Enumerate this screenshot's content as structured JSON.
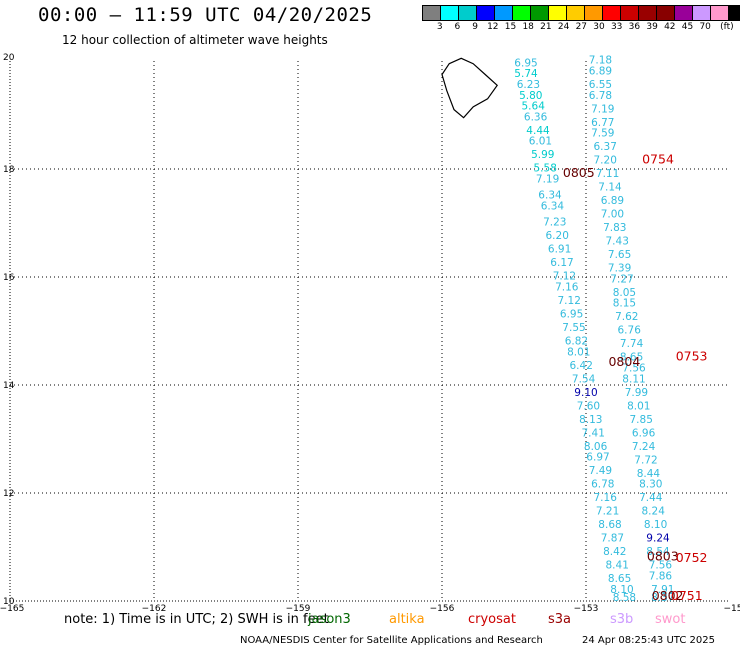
{
  "header": {
    "title": "00:00 – 11:59 UTC 04/20/2025",
    "subtitle": "12 hour collection of altimeter wave heights"
  },
  "colorbar": {
    "colors": [
      "#7f7f7f",
      "#00ffff",
      "#00cccc",
      "#0000ff",
      "#0099ff",
      "#00ff00",
      "#009900",
      "#ffff00",
      "#ffcc00",
      "#ff9900",
      "#ff0000",
      "#cc0000",
      "#990000",
      "#880000",
      "#990099",
      "#cc99ff",
      "#ff99cc",
      "#000000"
    ],
    "ticks": [
      "3",
      "6",
      "9",
      "12",
      "15",
      "18",
      "21",
      "24",
      "27",
      "30",
      "33",
      "36",
      "39",
      "42",
      "45",
      "70",
      "(ft)"
    ]
  },
  "axes": {
    "x_ticks": [
      "−165",
      "−162",
      "−159",
      "−156",
      "−153",
      "−15"
    ],
    "y_ticks": [
      "20",
      "18",
      "16",
      "14",
      "12",
      "10"
    ],
    "x_range": [
      -165,
      -150
    ],
    "y_range": [
      10,
      20
    ]
  },
  "footer": {
    "note": "note: 1) Time is in UTC; 2) SWH is in feet",
    "credit": "NOAA/NESDIS Center for Satellite Applications and Research",
    "generated": "24 Apr 08:25:43 UTC 2025"
  },
  "legend": [
    {
      "label": "jason3",
      "color": "#006600"
    },
    {
      "label": "altika",
      "color": "#ff9900"
    },
    {
      "label": "cryosat",
      "color": "#cc0000"
    },
    {
      "label": "s3a",
      "color": "#990000"
    },
    {
      "label": "s3b",
      "color": "#cc99ff"
    },
    {
      "label": "swot",
      "color": "#ff99cc"
    }
  ],
  "pass_labels": [
    {
      "text": "0805",
      "lon": -153.15,
      "lat": 17.85,
      "color": "#660000"
    },
    {
      "text": "0754",
      "lon": -151.5,
      "lat": 18.1,
      "color": "#cc0000"
    },
    {
      "text": "0804",
      "lon": -152.2,
      "lat": 14.35,
      "color": "#660000"
    },
    {
      "text": "0753",
      "lon": -150.8,
      "lat": 14.45,
      "color": "#cc0000"
    },
    {
      "text": "0803",
      "lon": -151.4,
      "lat": 10.75,
      "color": "#660000"
    },
    {
      "text": "0752",
      "lon": -150.8,
      "lat": 10.72,
      "color": "#cc0000"
    },
    {
      "text": "0802",
      "lon": -151.3,
      "lat": 10.02,
      "color": "#660000"
    },
    {
      "text": "0751",
      "lon": -150.9,
      "lat": 10.02,
      "color": "#cc0000"
    }
  ],
  "tracks": [
    {
      "name": "track-west",
      "points": [
        {
          "lon": -154.25,
          "lat": 19.9,
          "v": "6.95",
          "c": "#33bbdd"
        },
        {
          "lon": -154.25,
          "lat": 19.7,
          "v": "5.74",
          "c": "#00cccc"
        },
        {
          "lon": -154.2,
          "lat": 19.5,
          "v": "6.23",
          "c": "#33bbdd"
        },
        {
          "lon": -154.15,
          "lat": 19.3,
          "v": "5.80",
          "c": "#00cccc"
        },
        {
          "lon": -154.1,
          "lat": 19.1,
          "v": "5.64",
          "c": "#00cccc"
        },
        {
          "lon": -154.05,
          "lat": 18.9,
          "v": "6.36",
          "c": "#33bbdd"
        },
        {
          "lon": -154.0,
          "lat": 18.65,
          "v": "4.44",
          "c": "#00cccc"
        },
        {
          "lon": -153.95,
          "lat": 18.45,
          "v": "6.01",
          "c": "#33bbdd"
        },
        {
          "lon": -153.9,
          "lat": 18.2,
          "v": "5.99",
          "c": "#00cccc"
        },
        {
          "lon": -153.85,
          "lat": 17.95,
          "v": "5.58",
          "c": "#00cccc"
        },
        {
          "lon": -153.8,
          "lat": 17.75,
          "v": "7.19",
          "c": "#33bbdd"
        },
        {
          "lon": -153.75,
          "lat": 17.45,
          "v": "6.34",
          "c": "#33bbdd"
        },
        {
          "lon": -153.7,
          "lat": 17.25,
          "v": "6.34",
          "c": "#33bbdd"
        },
        {
          "lon": -153.65,
          "lat": 16.95,
          "v": "7.23",
          "c": "#33bbdd"
        },
        {
          "lon": -153.6,
          "lat": 16.7,
          "v": "6.20",
          "c": "#33bbdd"
        },
        {
          "lon": -153.55,
          "lat": 16.45,
          "v": "6.91",
          "c": "#33bbdd"
        },
        {
          "lon": -153.5,
          "lat": 16.2,
          "v": "6.17",
          "c": "#33bbdd"
        },
        {
          "lon": -153.45,
          "lat": 15.95,
          "v": "7.12",
          "c": "#33bbdd"
        },
        {
          "lon": -153.4,
          "lat": 15.75,
          "v": "7.16",
          "c": "#33bbdd"
        },
        {
          "lon": -153.35,
          "lat": 15.5,
          "v": "7.12",
          "c": "#33bbdd"
        },
        {
          "lon": -153.3,
          "lat": 15.25,
          "v": "6.95",
          "c": "#33bbdd"
        },
        {
          "lon": -153.25,
          "lat": 15.0,
          "v": "7.55",
          "c": "#33bbdd"
        },
        {
          "lon": -153.2,
          "lat": 14.75,
          "v": "6.82",
          "c": "#33bbdd"
        },
        {
          "lon": -153.15,
          "lat": 14.55,
          "v": "8.01",
          "c": "#33bbdd"
        },
        {
          "lon": -153.1,
          "lat": 14.3,
          "v": "6.42",
          "c": "#33bbdd"
        },
        {
          "lon": -153.05,
          "lat": 14.05,
          "v": "7.54",
          "c": "#33bbdd"
        },
        {
          "lon": -153.0,
          "lat": 13.8,
          "v": "9.10",
          "c": "#0000aa"
        },
        {
          "lon": -152.95,
          "lat": 13.55,
          "v": "7.60",
          "c": "#33bbdd"
        },
        {
          "lon": -152.9,
          "lat": 13.3,
          "v": "8.13",
          "c": "#33bbdd"
        },
        {
          "lon": -152.85,
          "lat": 13.05,
          "v": "7.41",
          "c": "#33bbdd"
        },
        {
          "lon": -152.8,
          "lat": 12.8,
          "v": "8.06",
          "c": "#33bbdd"
        },
        {
          "lon": -152.75,
          "lat": 12.6,
          "v": "6.97",
          "c": "#33bbdd"
        },
        {
          "lon": -152.7,
          "lat": 12.35,
          "v": "7.49",
          "c": "#33bbdd"
        },
        {
          "lon": -152.65,
          "lat": 12.1,
          "v": "6.78",
          "c": "#33bbdd"
        },
        {
          "lon": -152.6,
          "lat": 11.85,
          "v": "7.16",
          "c": "#33bbdd"
        },
        {
          "lon": -152.55,
          "lat": 11.6,
          "v": "7.21",
          "c": "#33bbdd"
        },
        {
          "lon": -152.5,
          "lat": 11.35,
          "v": "8.68",
          "c": "#33bbdd"
        },
        {
          "lon": -152.45,
          "lat": 11.1,
          "v": "7.87",
          "c": "#33bbdd"
        },
        {
          "lon": -152.4,
          "lat": 10.85,
          "v": "8.42",
          "c": "#33bbdd"
        },
        {
          "lon": -152.35,
          "lat": 10.6,
          "v": "8.41",
          "c": "#33bbdd"
        },
        {
          "lon": -152.3,
          "lat": 10.35,
          "v": "8.65",
          "c": "#33bbdd"
        },
        {
          "lon": -152.25,
          "lat": 10.15,
          "v": "8.10",
          "c": "#33bbdd"
        },
        {
          "lon": -152.2,
          "lat": 10.0,
          "v": "8.58",
          "c": "#33bbdd"
        }
      ]
    },
    {
      "name": "track-east",
      "points": [
        {
          "lon": -152.7,
          "lat": 19.95,
          "v": "7.18",
          "c": "#33bbdd"
        },
        {
          "lon": -152.7,
          "lat": 19.75,
          "v": "6.89",
          "c": "#33bbdd"
        },
        {
          "lon": -152.7,
          "lat": 19.5,
          "v": "6.55",
          "c": "#33bbdd"
        },
        {
          "lon": -152.7,
          "lat": 19.3,
          "v": "6.78",
          "c": "#33bbdd"
        },
        {
          "lon": -152.65,
          "lat": 19.05,
          "v": "7.19",
          "c": "#33bbdd"
        },
        {
          "lon": -152.65,
          "lat": 18.8,
          "v": "6.77",
          "c": "#33bbdd"
        },
        {
          "lon": -152.65,
          "lat": 18.6,
          "v": "7.59",
          "c": "#33bbdd"
        },
        {
          "lon": -152.6,
          "lat": 18.35,
          "v": "6.37",
          "c": "#33bbdd"
        },
        {
          "lon": -152.6,
          "lat": 18.1,
          "v": "7.20",
          "c": "#33bbdd"
        },
        {
          "lon": -152.55,
          "lat": 17.85,
          "v": "7.11",
          "c": "#33bbdd"
        },
        {
          "lon": -152.5,
          "lat": 17.6,
          "v": "7.14",
          "c": "#33bbdd"
        },
        {
          "lon": -152.45,
          "lat": 17.35,
          "v": "6.89",
          "c": "#33bbdd"
        },
        {
          "lon": -152.45,
          "lat": 17.1,
          "v": "7.00",
          "c": "#33bbdd"
        },
        {
          "lon": -152.4,
          "lat": 16.85,
          "v": "7.83",
          "c": "#33bbdd"
        },
        {
          "lon": -152.35,
          "lat": 16.6,
          "v": "7.43",
          "c": "#33bbdd"
        },
        {
          "lon": -152.3,
          "lat": 16.35,
          "v": "7.65",
          "c": "#33bbdd"
        },
        {
          "lon": -152.3,
          "lat": 16.1,
          "v": "7.39",
          "c": "#33bbdd"
        },
        {
          "lon": -152.25,
          "lat": 15.9,
          "v": "7.27",
          "c": "#33bbdd"
        },
        {
          "lon": -152.2,
          "lat": 15.65,
          "v": "8.05",
          "c": "#33bbdd"
        },
        {
          "lon": -152.2,
          "lat": 15.45,
          "v": "8.15",
          "c": "#33bbdd"
        },
        {
          "lon": -152.15,
          "lat": 15.2,
          "v": "7.62",
          "c": "#33bbdd"
        },
        {
          "lon": -152.1,
          "lat": 14.95,
          "v": "6.76",
          "c": "#33bbdd"
        },
        {
          "lon": -152.05,
          "lat": 14.7,
          "v": "7.74",
          "c": "#33bbdd"
        },
        {
          "lon": -152.05,
          "lat": 14.45,
          "v": "8.65",
          "c": "#33bbdd"
        },
        {
          "lon": -152.0,
          "lat": 14.25,
          "v": "7.56",
          "c": "#33bbdd"
        },
        {
          "lon": -152.0,
          "lat": 14.05,
          "v": "8.11",
          "c": "#33bbdd"
        },
        {
          "lon": -151.95,
          "lat": 13.8,
          "v": "7.99",
          "c": "#33bbdd"
        },
        {
          "lon": -151.9,
          "lat": 13.55,
          "v": "8.01",
          "c": "#33bbdd"
        },
        {
          "lon": -151.85,
          "lat": 13.3,
          "v": "7.85",
          "c": "#33bbdd"
        },
        {
          "lon": -151.8,
          "lat": 13.05,
          "v": "6.96",
          "c": "#33bbdd"
        },
        {
          "lon": -151.8,
          "lat": 12.8,
          "v": "7.24",
          "c": "#33bbdd"
        },
        {
          "lon": -151.75,
          "lat": 12.55,
          "v": "7.72",
          "c": "#33bbdd"
        },
        {
          "lon": -151.7,
          "lat": 12.3,
          "v": "8.44",
          "c": "#33bbdd"
        },
        {
          "lon": -151.65,
          "lat": 12.1,
          "v": "8.30",
          "c": "#33bbdd"
        },
        {
          "lon": -151.65,
          "lat": 11.85,
          "v": "7.44",
          "c": "#33bbdd"
        },
        {
          "lon": -151.6,
          "lat": 11.6,
          "v": "8.24",
          "c": "#33bbdd"
        },
        {
          "lon": -151.55,
          "lat": 11.35,
          "v": "8.10",
          "c": "#33bbdd"
        },
        {
          "lon": -151.5,
          "lat": 11.1,
          "v": "9.24",
          "c": "#0000aa"
        },
        {
          "lon": -151.5,
          "lat": 10.85,
          "v": "8.54",
          "c": "#33bbdd"
        },
        {
          "lon": -151.45,
          "lat": 10.6,
          "v": "7.56",
          "c": "#33bbdd"
        },
        {
          "lon": -151.45,
          "lat": 10.4,
          "v": "7.86",
          "c": "#33bbdd"
        },
        {
          "lon": -151.4,
          "lat": 10.15,
          "v": "7.91",
          "c": "#33bbdd"
        },
        {
          "lon": -151.4,
          "lat": 10.0,
          "v": "8.37",
          "c": "#33bbdd"
        }
      ]
    }
  ],
  "island": [
    [
      -155.85,
      19.95
    ],
    [
      -155.6,
      20.05
    ],
    [
      -155.35,
      19.95
    ],
    [
      -155.1,
      19.75
    ],
    [
      -154.85,
      19.55
    ],
    [
      -155.05,
      19.3
    ],
    [
      -155.35,
      19.15
    ],
    [
      -155.55,
      18.95
    ],
    [
      -155.75,
      19.1
    ],
    [
      -155.9,
      19.45
    ],
    [
      -156.0,
      19.75
    ]
  ]
}
